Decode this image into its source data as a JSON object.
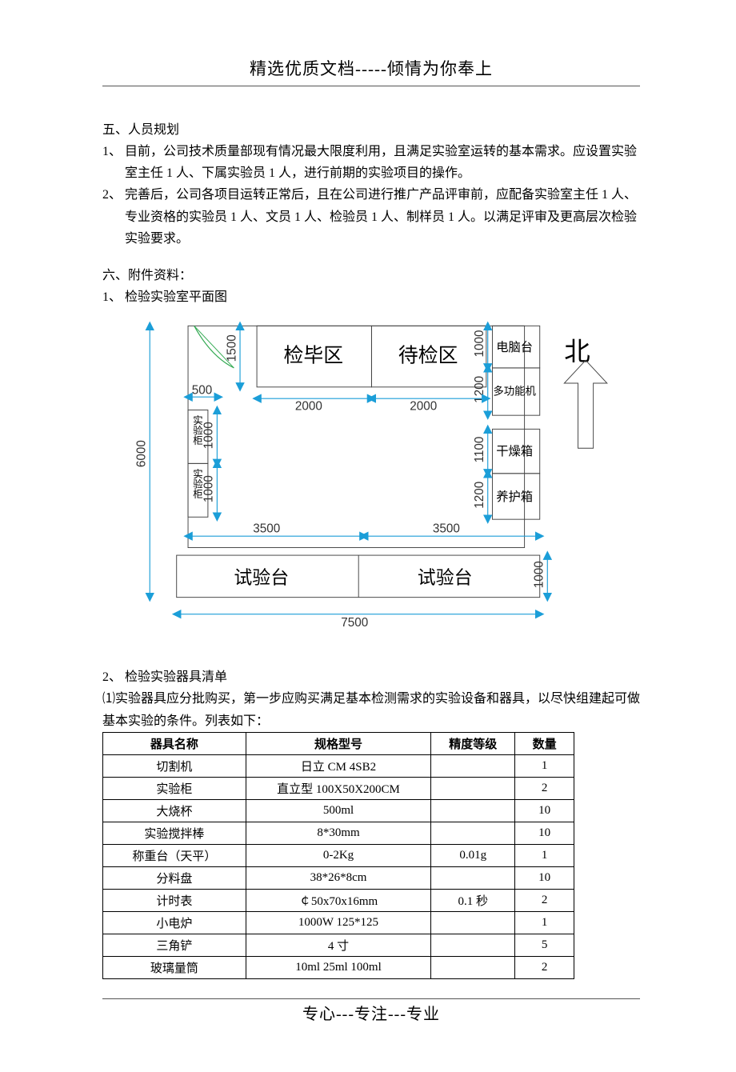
{
  "header": {
    "title": "精选优质文档-----倾情为你奉上"
  },
  "footer": {
    "title": "专心---专注---专业"
  },
  "section5": {
    "heading": "五、人员规划",
    "p1_num": "1、",
    "p1": "目前，公司技术质量部现有情况最大限度利用，且满足实验室运转的基本需求。应设置实验室主任 1 人、下属实验员 1 人，进行前期的实验项目的操作。",
    "p2_num": "2、",
    "p2": "完善后，公司各项目运转正常后，且在公司进行推广产品评审前，应配备实验室主任 1 人、专业资格的实验员 1 人、文员 1 人、检验员 1 人、制样员 1 人。以满足评审及更高层次检验实验要求。"
  },
  "section6": {
    "heading": "六、附件资料：",
    "p1_num": "1、",
    "p1": "检验实验室平面图",
    "p2_num": "2、",
    "p2": "检验实验器具清单",
    "desc": "⑴实验器具应分批购买，第一步应购买满足基本检测需求的实验设备和器具，以尽快组建起可做基本实验的条件。列表如下："
  },
  "floorplan": {
    "labels": {
      "jianbi": "检毕区",
      "daijian": "待检区",
      "diannao": "电脑台",
      "duogong": "多功能机",
      "ganzao": "干燥箱",
      "yanghu": "养护箱",
      "shiyan1a": "实验柜",
      "shiyan1b": "实验柜",
      "shiyantai1": "试验台",
      "shiyantai2": "试验台",
      "north": "北"
    },
    "dims": {
      "d6000": "6000",
      "d1500": "1500",
      "d500": "500",
      "d2000a": "2000",
      "d2000b": "2000",
      "d1000a": "1000",
      "d1000b": "1000",
      "d1000c": "1000",
      "d1200a": "1200",
      "d1100": "1100",
      "d1200b": "1200",
      "d1000d": "1000",
      "d3500a": "3500",
      "d3500b": "3500",
      "d7500": "7500"
    },
    "colors": {
      "dim_stroke": "#1b9ed8",
      "box_stroke": "#444444",
      "door_arc": "#2fa84f",
      "text": "#333333"
    }
  },
  "table": {
    "columns": [
      "器具名称",
      "规格型号",
      "精度等级",
      "数量"
    ],
    "rows": [
      [
        "切割机",
        "日立 CM 4SB2",
        "",
        "1"
      ],
      [
        "实验柜",
        "直立型 100X50X200CM",
        "",
        "2"
      ],
      [
        "大烧杯",
        "500ml",
        "",
        "10"
      ],
      [
        "实验搅拌棒",
        "8*30mm",
        "",
        "10"
      ],
      [
        "称重台（天平）",
        "0-2Kg",
        "0.01g",
        "1"
      ],
      [
        "分料盘",
        "38*26*8cm",
        "",
        "10"
      ],
      [
        "计时表",
        "￠50x70x16mm",
        "0.1 秒",
        "2"
      ],
      [
        "小电炉",
        "1000W 125*125",
        "",
        "1"
      ],
      [
        "三角铲",
        "4 寸",
        "",
        "5"
      ],
      [
        "玻璃量筒",
        "10ml 25ml 100ml",
        "",
        "2"
      ]
    ]
  }
}
